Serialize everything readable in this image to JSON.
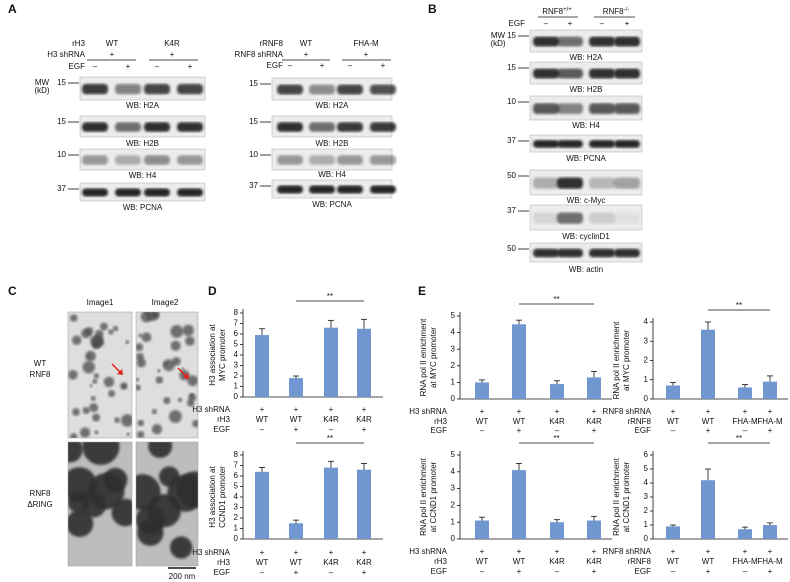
{
  "panels": {
    "a": {
      "label": "A",
      "mw_title": [
        "MW",
        "(kD)"
      ],
      "blots": [
        {
          "header": [
            {
              "label": "rH3",
              "groups": [
                "WT",
                "K4R"
              ]
            },
            {
              "label": "H3 shRNA",
              "groups": [
                "+",
                "+"
              ]
            },
            {
              "label": "EGF",
              "lanes": [
                "–",
                "+",
                "–",
                "+"
              ]
            }
          ],
          "rows": [
            {
              "mw": "15",
              "wb": "WB: H2A"
            },
            {
              "mw": "15",
              "wb": "WB: H2B"
            },
            {
              "mw": "10",
              "wb": "WB: H4"
            },
            {
              "mw": "37",
              "wb": "WB: PCNA"
            }
          ]
        },
        {
          "header": [
            {
              "label": "rRNF8",
              "groups": [
                "WT",
                "FHA-M"
              ]
            },
            {
              "label": "RNF8 shRNA",
              "groups": [
                "+",
                "+"
              ]
            },
            {
              "label": "EGF",
              "lanes": [
                "–",
                "+",
                "–",
                "+"
              ]
            }
          ],
          "rows": [
            {
              "mw": "15",
              "wb": "WB: H2A"
            },
            {
              "mw": "15",
              "wb": "WB: H2B"
            },
            {
              "mw": "10",
              "wb": "WB: H4"
            },
            {
              "mw": "37",
              "wb": "WB: PCNA"
            }
          ]
        }
      ]
    },
    "b": {
      "label": "B",
      "mw_title": [
        "MW",
        "(kD)"
      ],
      "blots": [
        {
          "header": [
            {
              "groups": [
                {
                  "text": "RNF8",
                  "sup": "+/+"
                },
                {
                  "text": "RNF8",
                  "sup": "-/-"
                }
              ]
            },
            {
              "label": "EGF",
              "lanes": [
                "–",
                "+",
                "–",
                "+"
              ]
            }
          ],
          "rows": [
            {
              "mw": "15",
              "wb": "WB: H2A"
            },
            {
              "mw": "15",
              "wb": "WB: H2B"
            },
            {
              "mw": "10",
              "wb": "WB: H4"
            },
            {
              "mw": "37",
              "wb": "WB: PCNA"
            },
            {
              "mw": "50",
              "wb": "WB: c-Myc"
            },
            {
              "mw": "37",
              "wb": "WB: cyclinD1"
            },
            {
              "mw": "50",
              "wb": "WB: actin"
            }
          ]
        }
      ]
    },
    "c": {
      "label": "C",
      "columns": [
        "Image1",
        "Image2"
      ],
      "rows": [
        [
          "WT",
          "RNF8"
        ],
        [
          "RNF8",
          "ΔRING"
        ]
      ],
      "scale_bar": "200 nm"
    },
    "d": {
      "label": "D"
    },
    "e": {
      "label": "E"
    }
  },
  "chart_data": [
    {
      "type": "bar",
      "ylabel": [
        "H3 association at",
        "MYC promoter"
      ],
      "values": [
        5.9,
        1.8,
        6.6,
        6.5
      ],
      "errors": [
        0.6,
        0.2,
        0.7,
        0.9
      ],
      "color": "#7097d0",
      "ylim": [
        0,
        8
      ],
      "yticks": [
        0,
        1,
        2,
        3,
        4,
        5,
        6,
        7,
        8
      ],
      "annotation": "**",
      "condition_rows": [
        {
          "label": "H3 shRNA",
          "values": [
            "+",
            "+",
            "+",
            "+"
          ]
        },
        {
          "label": "rH3",
          "values": [
            "WT",
            "WT",
            "K4R",
            "K4R"
          ]
        },
        {
          "label": "EGF",
          "values": [
            "–",
            "+",
            "–",
            "+"
          ]
        }
      ]
    },
    {
      "type": "bar",
      "ylabel": [
        "H3 association at",
        "CCND1 promoter"
      ],
      "values": [
        6.4,
        1.5,
        6.8,
        6.6
      ],
      "errors": [
        0.4,
        0.3,
        0.6,
        0.6
      ],
      "color": "#7097d0",
      "ylim": [
        0,
        8
      ],
      "yticks": [
        0,
        1,
        2,
        3,
        4,
        5,
        6,
        7,
        8
      ],
      "annotation": "**",
      "condition_rows": [
        {
          "label": "H3 shRNA",
          "values": [
            "+",
            "+",
            "+",
            "+"
          ]
        },
        {
          "label": "rH3",
          "values": [
            "WT",
            "WT",
            "K4R",
            "K4R"
          ]
        },
        {
          "label": "EGF",
          "values": [
            "–",
            "+",
            "–",
            "+"
          ]
        }
      ]
    },
    {
      "type": "bar",
      "ylabel": [
        "RNA pol II enrichment",
        "at MYC promoter"
      ],
      "values": [
        1.0,
        4.5,
        0.9,
        1.3
      ],
      "errors": [
        0.15,
        0.25,
        0.2,
        0.35
      ],
      "color": "#7097d0",
      "ylim": [
        0,
        5
      ],
      "yticks": [
        0,
        1,
        2,
        3,
        4,
        5
      ],
      "annotation": "**",
      "condition_rows": [
        {
          "label": "H3 shRNA",
          "values": [
            "+",
            "+",
            "+",
            "+"
          ]
        },
        {
          "label": "rH3",
          "values": [
            "WT",
            "WT",
            "K4R",
            "K4R"
          ]
        },
        {
          "label": "EGF",
          "values": [
            "–",
            "+",
            "–",
            "+"
          ]
        }
      ]
    },
    {
      "type": "bar",
      "ylabel": [
        "RNA pol II enrichment",
        "at MYC promoter"
      ],
      "values": [
        0.7,
        3.6,
        0.6,
        0.9
      ],
      "errors": [
        0.15,
        0.4,
        0.15,
        0.3
      ],
      "color": "#7097d0",
      "ylim": [
        0,
        4
      ],
      "yticks": [
        0,
        1,
        2,
        3,
        4
      ],
      "annotation": "**",
      "condition_rows": [
        {
          "label": "RNF8 shRNA",
          "values": [
            "+",
            "+",
            "+",
            "+"
          ]
        },
        {
          "label": "rRNF8",
          "values": [
            "WT",
            "WT",
            "FHA-M",
            "FHA-M"
          ]
        },
        {
          "label": "EGF",
          "values": [
            "–",
            "+",
            "–",
            "+"
          ]
        }
      ]
    },
    {
      "type": "bar",
      "ylabel": [
        "RNA pol II enrichment",
        "at CCND1 promoter"
      ],
      "values": [
        1.1,
        4.1,
        1.0,
        1.1
      ],
      "errors": [
        0.2,
        0.4,
        0.15,
        0.25
      ],
      "color": "#7097d0",
      "ylim": [
        0,
        5
      ],
      "yticks": [
        0,
        1,
        2,
        3,
        4,
        5
      ],
      "annotation": "**",
      "condition_rows": [
        {
          "label": "H3 shRNA",
          "values": [
            "+",
            "+",
            "+",
            "+"
          ]
        },
        {
          "label": "rH3",
          "values": [
            "WT",
            "WT",
            "K4R",
            "K4R"
          ]
        },
        {
          "label": "EGF",
          "values": [
            "–",
            "+",
            "–",
            "+"
          ]
        }
      ]
    },
    {
      "type": "bar",
      "ylabel": [
        "RNA pol II enrichment",
        "at CCND1 promoter"
      ],
      "values": [
        0.9,
        4.2,
        0.7,
        1.0
      ],
      "errors": [
        0.1,
        0.8,
        0.15,
        0.15
      ],
      "color": "#7097d0",
      "ylim": [
        0,
        6
      ],
      "yticks": [
        0,
        1,
        2,
        3,
        4,
        5,
        6
      ],
      "annotation": "**",
      "condition_rows": [
        {
          "label": "RNF8 shRNA",
          "values": [
            "+",
            "+",
            "+",
            "+"
          ]
        },
        {
          "label": "rRNF8",
          "values": [
            "WT",
            "WT",
            "FHA-M",
            "FHA-M"
          ]
        },
        {
          "label": "EGF",
          "values": [
            "–",
            "+",
            "–",
            "+"
          ]
        }
      ]
    }
  ]
}
